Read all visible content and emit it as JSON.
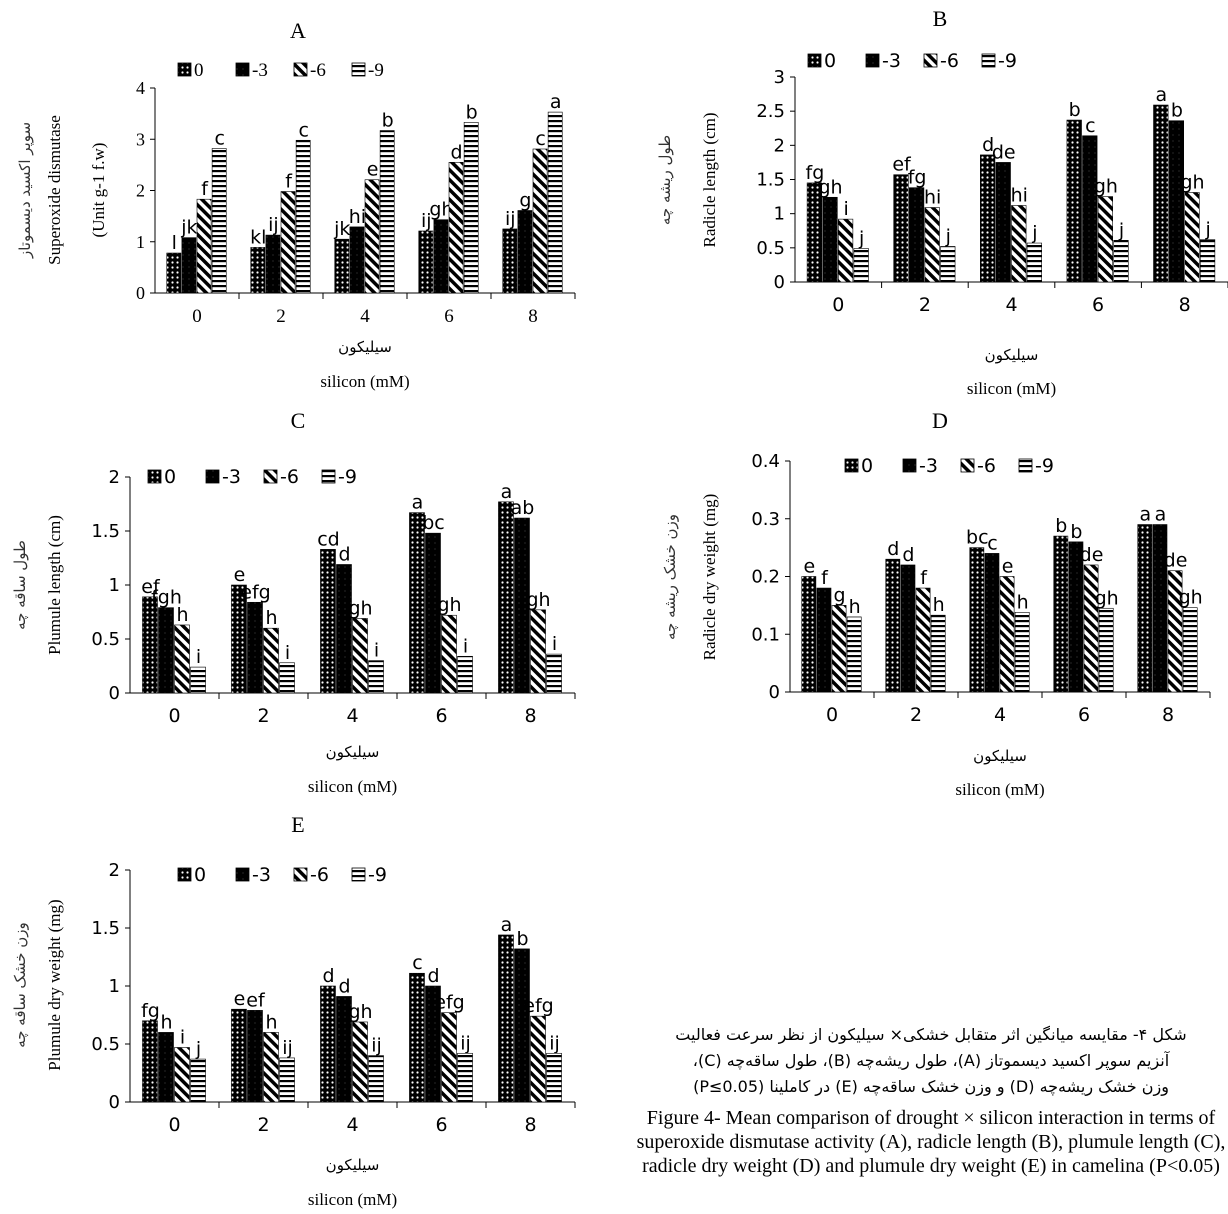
{
  "chart_data": [
    {
      "type": "bar",
      "title": "A",
      "xlabel_fa": "سیلیکون",
      "xlabel": "silicon (mM)",
      "ylabel": "Superoxide dismutase",
      "ylabel_unit": "(Unit g-1 f.w)",
      "ylabel_fa": "سوپر اکسید دیسموتاز",
      "ylim": [
        0,
        4
      ],
      "yticks": [
        "0",
        "1",
        "2",
        "3",
        "4"
      ],
      "categories": [
        "0",
        "2",
        "4",
        "6",
        "8"
      ],
      "legend": "top-left",
      "series": [
        {
          "name": "0",
          "values": [
            0.78,
            0.89,
            1.05,
            1.21,
            1.25
          ],
          "letters": [
            "l",
            "kl",
            "jk",
            "ij",
            "ij"
          ]
        },
        {
          "name": "-3",
          "values": [
            1.08,
            1.13,
            1.29,
            1.43,
            1.61
          ],
          "letters": [
            "jk",
            "ij",
            "hi",
            "gh",
            "g"
          ]
        },
        {
          "name": "-6",
          "values": [
            1.83,
            1.98,
            2.21,
            2.55,
            2.81
          ],
          "letters": [
            "f",
            "f",
            "e",
            "d",
            "c"
          ]
        },
        {
          "name": "-9",
          "values": [
            2.82,
            2.98,
            3.17,
            3.33,
            3.53
          ],
          "letters": [
            "c",
            "c",
            "b",
            "b",
            "a"
          ]
        }
      ]
    },
    {
      "type": "bar",
      "title": "B",
      "xlabel_fa": "سیلیکون",
      "xlabel": "silicon (mM)",
      "ylabel": "Radicle length (cm)",
      "ylabel_fa": "طول ریشه چه",
      "ylim": [
        0,
        3
      ],
      "yticks": [
        "0",
        "0.5",
        "1",
        "1.5",
        "2",
        "2.5",
        "3"
      ],
      "categories": [
        "0",
        "2",
        "4",
        "6",
        "8"
      ],
      "legend": "top-left",
      "series": [
        {
          "name": "0",
          "values": [
            1.45,
            1.57,
            1.86,
            2.37,
            2.59
          ],
          "letters": [
            "fg",
            "ef",
            "d",
            "b",
            "a"
          ]
        },
        {
          "name": "-3",
          "values": [
            1.24,
            1.38,
            1.75,
            2.14,
            2.36
          ],
          "letters": [
            "gh",
            "fg",
            "de",
            "c",
            "b"
          ]
        },
        {
          "name": "-6",
          "values": [
            0.92,
            1.09,
            1.12,
            1.25,
            1.31
          ],
          "letters": [
            "i",
            "hi",
            "hi",
            "gh",
            "gh"
          ]
        },
        {
          "name": "-9",
          "values": [
            0.49,
            0.52,
            0.57,
            0.61,
            0.62
          ],
          "letters": [
            "j",
            "j",
            "j",
            "j",
            "j"
          ]
        }
      ]
    },
    {
      "type": "bar",
      "title": "C",
      "xlabel_fa": "سیلیکون",
      "xlabel": "silicon (mM)",
      "ylabel": "Plumule length (cm)",
      "ylabel_fa": "طول ساقه چه",
      "ylim": [
        0,
        2
      ],
      "yticks": [
        "0",
        "0.5",
        "1",
        "1.5",
        "2"
      ],
      "categories": [
        "0",
        "2",
        "4",
        "6",
        "8"
      ],
      "legend": "top-left",
      "series": [
        {
          "name": "0",
          "values": [
            0.89,
            1.0,
            1.33,
            1.67,
            1.77
          ],
          "letters": [
            "ef",
            "e",
            "cd",
            "a",
            "a"
          ]
        },
        {
          "name": "-3",
          "values": [
            0.79,
            0.84,
            1.19,
            1.48,
            1.62
          ],
          "letters": [
            "fgh",
            "efg",
            "d",
            "bc",
            "ab"
          ]
        },
        {
          "name": "-6",
          "values": [
            0.63,
            0.6,
            0.69,
            0.72,
            0.77
          ],
          "letters": [
            "h",
            "h",
            "gh",
            "gh",
            "gh"
          ]
        },
        {
          "name": "-9",
          "values": [
            0.24,
            0.28,
            0.3,
            0.34,
            0.36
          ],
          "letters": [
            "i",
            "i",
            "i",
            "i",
            "i"
          ]
        }
      ]
    },
    {
      "type": "bar",
      "title": "D",
      "xlabel_fa": "سیلیکون",
      "xlabel": "silicon (mM)",
      "ylabel": "Radicle dry weight (mg)",
      "ylabel_fa": "وزن خشک ریشه چه",
      "ylim": [
        0,
        0.4
      ],
      "yticks": [
        "0",
        "0.1",
        "0.2",
        "0.3",
        "0.4"
      ],
      "categories": [
        "0",
        "2",
        "4",
        "6",
        "8"
      ],
      "legend": "top-left",
      "series": [
        {
          "name": "0",
          "values": [
            0.2,
            0.23,
            0.25,
            0.27,
            0.29
          ],
          "letters": [
            "e",
            "d",
            "bc",
            "b",
            "a"
          ]
        },
        {
          "name": "-3",
          "values": [
            0.18,
            0.22,
            0.24,
            0.26,
            0.29
          ],
          "letters": [
            "f",
            "d",
            "c",
            "b",
            "a"
          ]
        },
        {
          "name": "-6",
          "values": [
            0.15,
            0.18,
            0.2,
            0.22,
            0.21
          ],
          "letters": [
            "g",
            "f",
            "e",
            "de",
            "de"
          ]
        },
        {
          "name": "-9",
          "values": [
            0.13,
            0.133,
            0.138,
            0.145,
            0.146
          ],
          "letters": [
            "h",
            "h",
            "h",
            "gh",
            "gh"
          ]
        }
      ]
    },
    {
      "type": "bar",
      "title": "E",
      "xlabel_fa": "سیلیکون",
      "xlabel": "silicon (mM)",
      "ylabel": "Plumule dry weight (mg)",
      "ylabel_fa": "وزن خشک ساقه چه",
      "ylim": [
        0,
        2
      ],
      "yticks": [
        "0",
        "0.5",
        "1",
        "1.5",
        "2"
      ],
      "categories": [
        "0",
        "2",
        "4",
        "6",
        "8"
      ],
      "legend": "top-left",
      "series": [
        {
          "name": "0",
          "values": [
            0.7,
            0.8,
            1.0,
            1.11,
            1.44
          ],
          "letters": [
            "fg",
            "e",
            "d",
            "c",
            "a"
          ]
        },
        {
          "name": "-3",
          "values": [
            0.6,
            0.79,
            0.91,
            1.0,
            1.32
          ],
          "letters": [
            "h",
            "ef",
            "d",
            "d",
            "b"
          ]
        },
        {
          "name": "-6",
          "values": [
            0.47,
            0.6,
            0.69,
            0.77,
            0.74
          ],
          "letters": [
            "i",
            "h",
            "gh",
            "efg",
            "efg"
          ]
        },
        {
          "name": "-9",
          "values": [
            0.37,
            0.38,
            0.4,
            0.42,
            0.42
          ],
          "letters": [
            "j",
            "ij",
            "ij",
            "ij",
            "ij"
          ]
        }
      ]
    }
  ],
  "caption": {
    "fa_line1": "شکل ۴- مقایسه میانگین اثر متقابل خشکی× سیلیکون از نظر سرعت فعالیت",
    "fa_line2": "آنزیم سوپر اکسید دیسموتاز (A)، طول ریشه‌چه (B)، طول ساقه‌چه (C)،",
    "fa_line3": "وزن خشک ریشه‌چه (D) و وزن خشک ساقه‌چه (E) در کاملینا (P≤0.05)",
    "en": "Figure 4- Mean comparison of drought × silicon interaction in terms of superoxide dismutase activity (A), radicle length (B), plumule length (C), radicle dry weight (D) and plumule dry weight (E) in camelina (P<0.05)"
  },
  "colors": {
    "bar_stroke": "#000000",
    "bar_fill": "#000000",
    "background": "#ffffff"
  },
  "patterns": [
    "dots",
    "solid-dark",
    "diagonal-stripes",
    "horizontal-stripes"
  ]
}
